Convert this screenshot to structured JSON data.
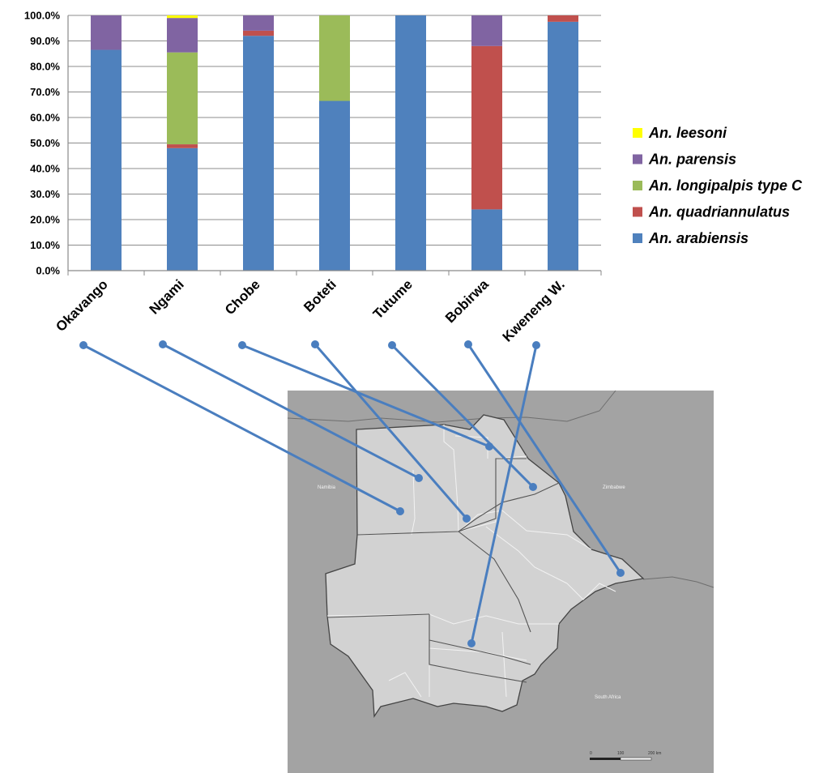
{
  "chart_data": {
    "type": "bar",
    "stacked": true,
    "y_ticks": [
      "0.0%",
      "10.0%",
      "20.0%",
      "30.0%",
      "40.0%",
      "50.0%",
      "60.0%",
      "70.0%",
      "80.0%",
      "90.0%",
      "100.0%"
    ],
    "ylim": [
      0,
      100
    ],
    "grid": true,
    "legend_position": "right",
    "categories": [
      "Okavango",
      "Ngami",
      "Chobe",
      "Boteti",
      "Tutume",
      "Bobirwa",
      "Kweneng W."
    ],
    "series": [
      {
        "name": "An. arabiensis",
        "color": "#4f81bd",
        "values": [
          86.5,
          48.0,
          92.0,
          66.5,
          100.0,
          24.0,
          97.5
        ]
      },
      {
        "name": "An. quadriannulatus",
        "color": "#c0504d",
        "values": [
          0.0,
          1.5,
          2.0,
          0.0,
          0.0,
          64.0,
          2.5
        ]
      },
      {
        "name": "An. longipalpis type C",
        "color": "#9bbb59",
        "values": [
          0.0,
          36.0,
          0.0,
          33.5,
          0.0,
          0.0,
          0.0
        ]
      },
      {
        "name": "An. parensis",
        "color": "#8064a2",
        "values": [
          13.5,
          13.5,
          6.0,
          0.0,
          0.0,
          12.0,
          0.0
        ]
      },
      {
        "name": "An. leesoni",
        "color": "#ffff00",
        "values": [
          0.0,
          1.0,
          0.0,
          0.0,
          0.0,
          0.0,
          0.0
        ]
      }
    ],
    "legend_order": [
      "An. leesoni",
      "An. parensis",
      "An. longipalpis type C",
      "An. quadriannulatus",
      "An. arabiensis"
    ]
  },
  "map": {
    "country_labels": [
      "Namibia",
      "Zimbabwe",
      "South Africa"
    ],
    "scale_labels": [
      "0",
      "100",
      "200 km"
    ],
    "colors": {
      "background": "#a3a3a3",
      "land": "#d2d2d2",
      "border": "#444444",
      "district_lines": "#f2f2f2"
    }
  },
  "connector_color": "#4a7ebf"
}
